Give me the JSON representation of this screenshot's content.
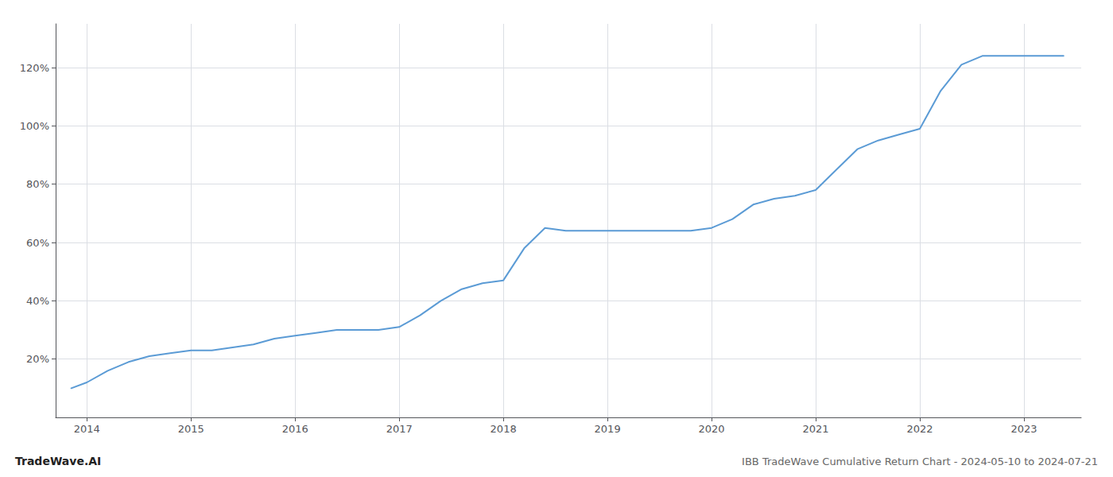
{
  "chart_data": {
    "type": "line",
    "title": "IBB TradeWave Cumulative Return Chart - 2024-05-10 to 2024-07-21",
    "annotations": [
      "TradeWave.AI"
    ],
    "color": "#5b9bd5",
    "x": [
      2013.85,
      2014.0,
      2014.2,
      2014.4,
      2014.6,
      2014.8,
      2015.0,
      2015.2,
      2015.4,
      2015.6,
      2015.8,
      2016.0,
      2016.2,
      2016.4,
      2016.6,
      2016.8,
      2017.0,
      2017.2,
      2017.4,
      2017.6,
      2017.8,
      2018.0,
      2018.2,
      2018.4,
      2018.6,
      2018.8,
      2019.0,
      2019.2,
      2019.4,
      2019.6,
      2019.8,
      2020.0,
      2020.2,
      2020.4,
      2020.6,
      2020.8,
      2021.0,
      2021.2,
      2021.4,
      2021.6,
      2021.8,
      2022.0,
      2022.2,
      2022.4,
      2022.6,
      2022.8,
      2023.0,
      2023.2,
      2023.38
    ],
    "values": [
      10,
      12,
      16,
      19,
      21,
      22,
      23,
      23,
      24,
      25,
      27,
      28,
      29,
      30,
      30,
      30,
      31,
      35,
      40,
      44,
      46,
      47,
      58,
      65,
      64,
      64,
      64,
      64,
      64,
      64,
      64,
      65,
      68,
      73,
      75,
      76,
      78,
      85,
      92,
      95,
      97,
      99,
      112,
      121,
      124,
      124,
      124,
      124,
      124
    ],
    "xlim": [
      2013.7,
      2023.55
    ],
    "xticks": [
      2014,
      2015,
      2016,
      2017,
      2018,
      2019,
      2020,
      2021,
      2022,
      2023
    ],
    "ylim": [
      0,
      135
    ],
    "yticks": [
      {
        "value": 20,
        "label": "20%"
      },
      {
        "value": 40,
        "label": "40%"
      },
      {
        "value": 60,
        "label": "60%"
      },
      {
        "value": 80,
        "label": "80%"
      },
      {
        "value": 100,
        "label": "100%"
      },
      {
        "value": 120,
        "label": "120%"
      }
    ],
    "grid": true
  }
}
